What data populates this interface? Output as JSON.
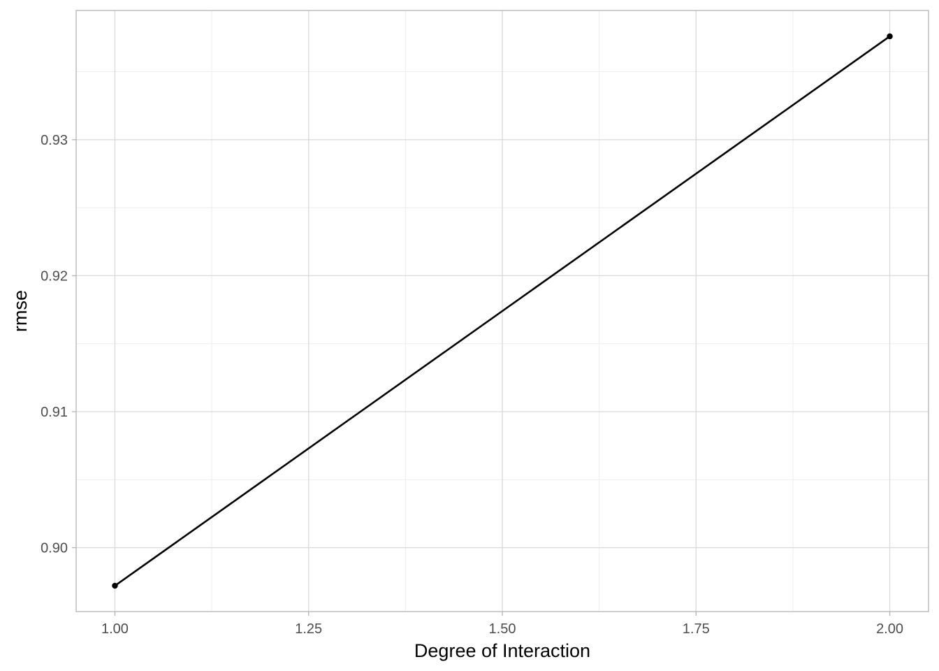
{
  "chart_data": {
    "type": "line",
    "title": "",
    "xlabel": "Degree of Interaction",
    "ylabel": "rmse",
    "x": [
      1.0,
      2.0
    ],
    "series": [
      {
        "values": [
          0.8972,
          0.9376
        ]
      }
    ],
    "xlim": [
      0.95,
      2.05
    ],
    "ylim": [
      0.8953,
      0.9395
    ],
    "x_ticks": [
      1.0,
      1.25,
      1.5,
      1.75,
      2.0
    ],
    "x_tick_labels": [
      "1.00",
      "1.25",
      "1.50",
      "1.75",
      "2.00"
    ],
    "y_ticks": [
      0.9,
      0.91,
      0.92,
      0.93
    ],
    "y_tick_labels": [
      "0.90",
      "0.91",
      "0.92",
      "0.93"
    ],
    "grid": true,
    "legend": "none",
    "colors": {
      "line": "#000000",
      "point": "#000000",
      "grid_major": "#d9d9d9",
      "grid_minor": "#ebebeb",
      "border": "#b3b3b3"
    }
  }
}
